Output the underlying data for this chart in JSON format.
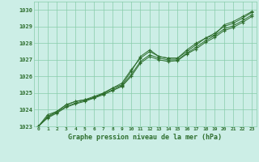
{
  "title": "Graphe pression niveau de la mer (hPa)",
  "bg_color": "#cceee6",
  "grid_color": "#88ccaa",
  "line_color": "#2d6e2d",
  "marker_color": "#2d6e2d",
  "ylim": [
    1023.0,
    1030.5
  ],
  "xlim": [
    -0.5,
    23.5
  ],
  "yticks": [
    1023,
    1024,
    1025,
    1026,
    1027,
    1028,
    1029,
    1030
  ],
  "xticks": [
    0,
    1,
    2,
    3,
    4,
    5,
    6,
    7,
    8,
    9,
    10,
    11,
    12,
    13,
    14,
    15,
    16,
    17,
    18,
    19,
    20,
    21,
    22,
    23
  ],
  "lines": [
    [
      1023.0,
      1023.7,
      1023.9,
      1024.3,
      1024.5,
      1024.6,
      1024.7,
      1025.0,
      1025.3,
      1025.5,
      1026.3,
      1027.2,
      1027.6,
      1027.2,
      1027.1,
      1027.1,
      1027.6,
      1028.0,
      1028.3,
      1028.5,
      1029.1,
      1029.3,
      1029.6,
      1029.9
    ],
    [
      1023.0,
      1023.6,
      1023.9,
      1024.3,
      1024.5,
      1024.6,
      1024.8,
      1025.0,
      1025.3,
      1025.6,
      1026.4,
      1027.1,
      1027.5,
      1027.2,
      1027.1,
      1027.1,
      1027.5,
      1027.9,
      1028.3,
      1028.6,
      1029.0,
      1029.2,
      1029.5,
      1029.85
    ],
    [
      1023.0,
      1023.55,
      1023.85,
      1024.2,
      1024.4,
      1024.55,
      1024.75,
      1024.95,
      1025.2,
      1025.45,
      1026.1,
      1026.9,
      1027.3,
      1027.1,
      1027.0,
      1027.0,
      1027.4,
      1027.75,
      1028.15,
      1028.45,
      1028.85,
      1029.05,
      1029.35,
      1029.7
    ],
    [
      1023.0,
      1023.5,
      1023.8,
      1024.15,
      1024.35,
      1024.5,
      1024.7,
      1024.9,
      1025.15,
      1025.4,
      1026.0,
      1026.8,
      1027.2,
      1027.0,
      1026.9,
      1026.95,
      1027.35,
      1027.65,
      1028.05,
      1028.35,
      1028.75,
      1028.95,
      1029.25,
      1029.6
    ]
  ]
}
